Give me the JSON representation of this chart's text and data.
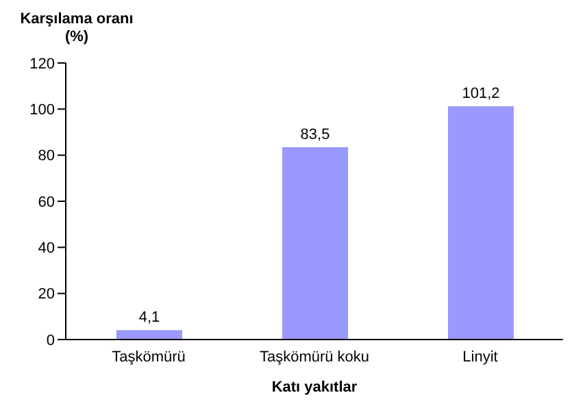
{
  "chart_data": {
    "type": "bar",
    "ylabel": "Karşılama oranı (%)",
    "xlabel": "Katı yakıtlar",
    "categories": [
      "Taşkömürü",
      "Taşkömürü koku",
      "Linyit"
    ],
    "values": [
      4.1,
      83.5,
      101.2
    ],
    "value_labels": [
      "4,1",
      "83,5",
      "101,2"
    ],
    "color": "#9999ff",
    "ylim": [
      0,
      120
    ],
    "yticks": [
      0,
      20,
      40,
      60,
      80,
      100,
      120
    ],
    "grid": false,
    "legend": false
  }
}
